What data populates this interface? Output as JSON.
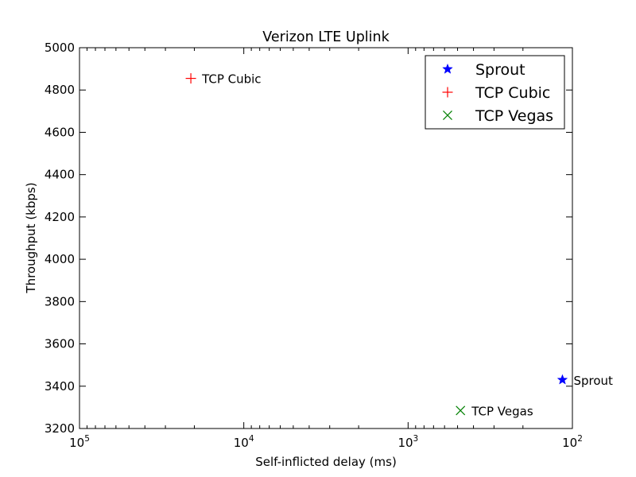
{
  "chart_data": {
    "type": "scatter",
    "title": "Verizon LTE Uplink",
    "xlabel": "Self-inflicted delay (ms)",
    "ylabel": "Throughput (kbps)",
    "x_scale": "log",
    "x_axis_reversed": true,
    "xlim": [
      100000,
      100
    ],
    "ylim": [
      3200,
      5000
    ],
    "x_ticks": [
      {
        "value": 100000,
        "base": "10",
        "exp": "5"
      },
      {
        "value": 10000,
        "base": "10",
        "exp": "4"
      },
      {
        "value": 1000,
        "base": "10",
        "exp": "3"
      },
      {
        "value": 100,
        "base": "10",
        "exp": "2"
      }
    ],
    "y_ticks": [
      3200,
      3400,
      3600,
      3800,
      4000,
      4200,
      4400,
      4600,
      4800,
      5000
    ],
    "grid": false,
    "legend_position": "top-right",
    "series": [
      {
        "name": "Sprout",
        "marker": "star",
        "color": "#0000ff",
        "x": 115,
        "y": 3430,
        "label": "Sprout"
      },
      {
        "name": "TCP Cubic",
        "marker": "plus",
        "color": "#ff0000",
        "x": 21000,
        "y": 4855,
        "label": "TCP Cubic"
      },
      {
        "name": "TCP Vegas",
        "marker": "x",
        "color": "#008000",
        "x": 480,
        "y": 3285,
        "label": "TCP Vegas"
      }
    ]
  }
}
